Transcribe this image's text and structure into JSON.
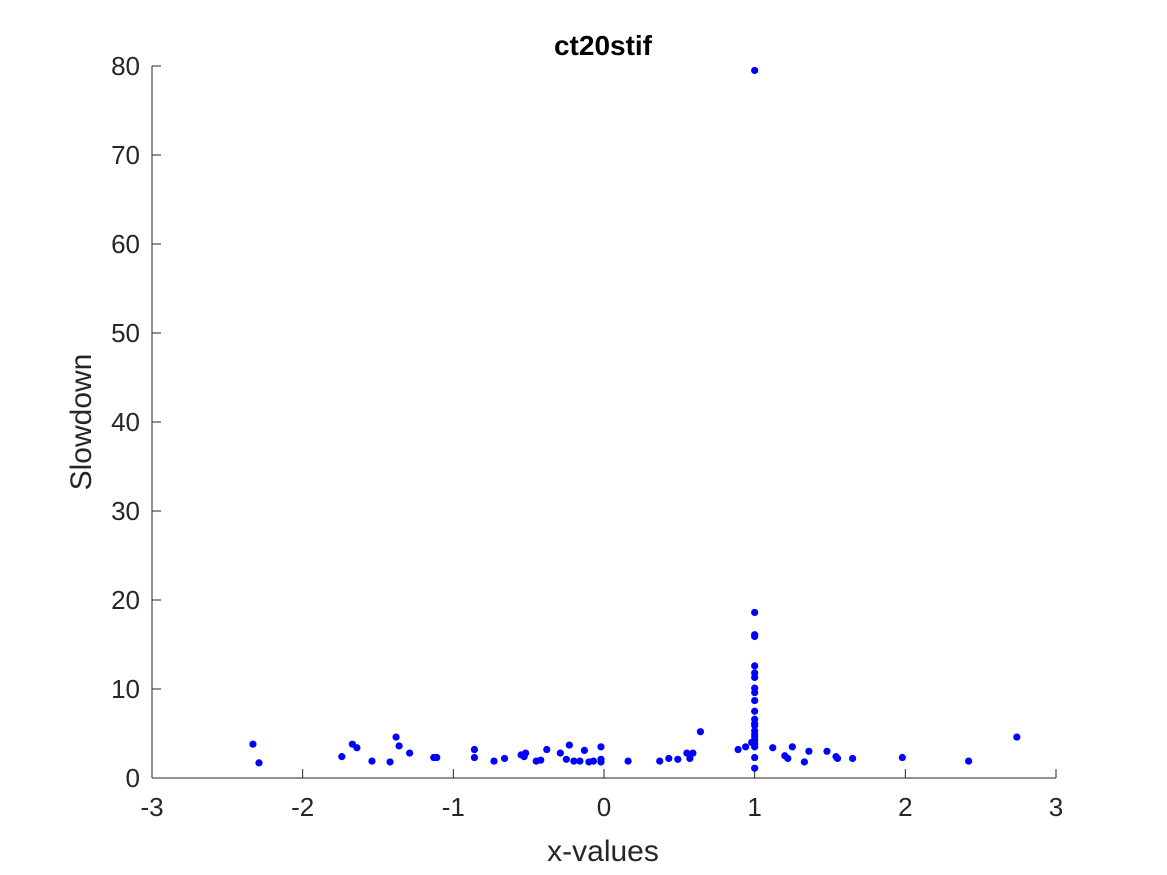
{
  "chart_data": {
    "type": "scatter",
    "title": "ct20stif",
    "xlabel": "x-values",
    "ylabel": "Slowdown",
    "xlim": [
      -3,
      3
    ],
    "ylim": [
      0,
      80
    ],
    "xticks": [
      -3,
      -2,
      -1,
      0,
      1,
      2,
      3
    ],
    "yticks": [
      0,
      10,
      20,
      30,
      40,
      50,
      60,
      70,
      80
    ],
    "grid": false,
    "marker_color": "#0000ff",
    "series": [
      {
        "points": [
          [
            -2.33,
            3.8
          ],
          [
            -2.29,
            1.7
          ],
          [
            -1.74,
            2.4
          ],
          [
            -1.67,
            3.8
          ],
          [
            -1.64,
            3.4
          ],
          [
            -1.54,
            1.9
          ],
          [
            -1.42,
            1.8
          ],
          [
            -1.38,
            4.6
          ],
          [
            -1.36,
            3.6
          ],
          [
            -1.29,
            2.8
          ],
          [
            -1.13,
            2.3
          ],
          [
            -1.11,
            2.3
          ],
          [
            -0.86,
            3.2
          ],
          [
            -0.86,
            2.3
          ],
          [
            -0.73,
            1.9
          ],
          [
            -0.66,
            2.2
          ],
          [
            -0.55,
            2.6
          ],
          [
            -0.53,
            2.4
          ],
          [
            -0.52,
            2.8
          ],
          [
            -0.45,
            1.9
          ],
          [
            -0.42,
            2.0
          ],
          [
            -0.38,
            3.2
          ],
          [
            -0.29,
            2.8
          ],
          [
            -0.25,
            2.1
          ],
          [
            -0.23,
            3.7
          ],
          [
            -0.2,
            1.9
          ],
          [
            -0.16,
            1.9
          ],
          [
            -0.13,
            3.1
          ],
          [
            -0.1,
            1.8
          ],
          [
            -0.07,
            1.9
          ],
          [
            -0.02,
            3.5
          ],
          [
            -0.02,
            1.8
          ],
          [
            -0.02,
            2.1
          ],
          [
            0.16,
            1.9
          ],
          [
            0.37,
            1.9
          ],
          [
            0.43,
            2.2
          ],
          [
            0.49,
            2.1
          ],
          [
            0.55,
            2.8
          ],
          [
            0.57,
            2.2
          ],
          [
            0.59,
            2.8
          ],
          [
            0.64,
            5.2
          ],
          [
            0.89,
            3.2
          ],
          [
            0.94,
            3.5
          ],
          [
            0.98,
            4.0
          ],
          [
            1.0,
            79.5
          ],
          [
            1.0,
            18.6
          ],
          [
            1.0,
            16.1
          ],
          [
            1.0,
            15.9
          ],
          [
            1.0,
            12.6
          ],
          [
            1.0,
            11.8
          ],
          [
            1.0,
            11.3
          ],
          [
            1.0,
            10.1
          ],
          [
            1.0,
            9.6
          ],
          [
            1.0,
            8.7
          ],
          [
            1.0,
            7.5
          ],
          [
            1.0,
            6.6
          ],
          [
            1.0,
            6.1
          ],
          [
            1.0,
            5.9
          ],
          [
            1.0,
            5.3
          ],
          [
            1.0,
            4.9
          ],
          [
            1.0,
            4.6
          ],
          [
            1.0,
            4.2
          ],
          [
            1.0,
            3.8
          ],
          [
            1.0,
            3.5
          ],
          [
            1.0,
            2.3
          ],
          [
            1.0,
            1.1
          ],
          [
            1.12,
            3.4
          ],
          [
            1.2,
            2.5
          ],
          [
            1.22,
            2.2
          ],
          [
            1.25,
            3.5
          ],
          [
            1.33,
            1.8
          ],
          [
            1.36,
            3.0
          ],
          [
            1.48,
            3.0
          ],
          [
            1.54,
            2.4
          ],
          [
            1.55,
            2.2
          ],
          [
            1.65,
            2.2
          ],
          [
            1.98,
            2.3
          ],
          [
            2.42,
            1.9
          ],
          [
            2.74,
            4.6
          ]
        ]
      }
    ]
  }
}
